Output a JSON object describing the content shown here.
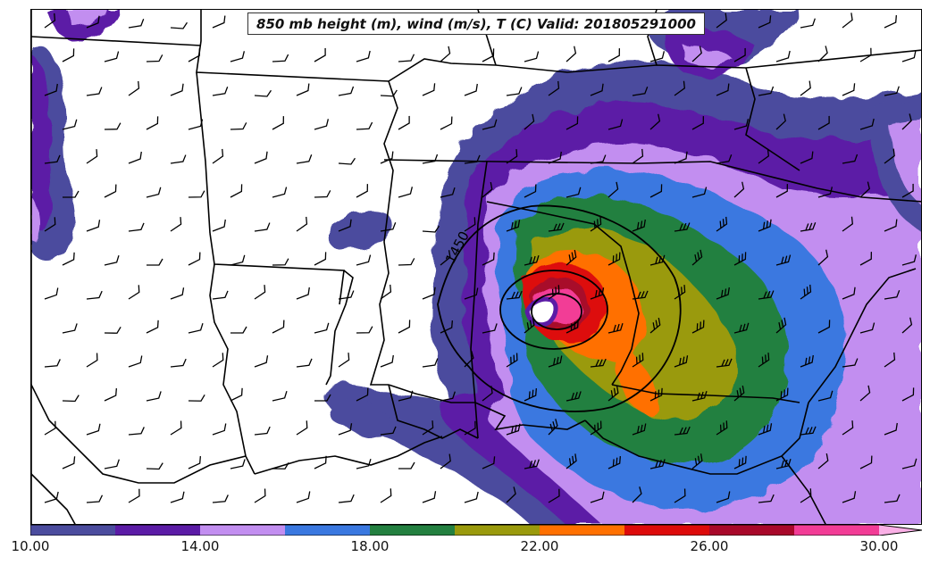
{
  "title": "850 mb height (m), wind (m/s), T (C) Valid: 201805291000",
  "contour_label": "1450",
  "colorbar": {
    "colors": [
      "#4b4c9e",
      "#5b1ba6",
      "#c28ef0",
      "#3a78e0",
      "#238040",
      "#9a9a0c",
      "#ff7000",
      "#dd0a0a",
      "#a8082a",
      "#f23c96",
      "#fab0e6"
    ],
    "tick_labels": [
      "10.00",
      "14.00",
      "18.00",
      "22.00",
      "26.00",
      "30.00"
    ]
  }
}
